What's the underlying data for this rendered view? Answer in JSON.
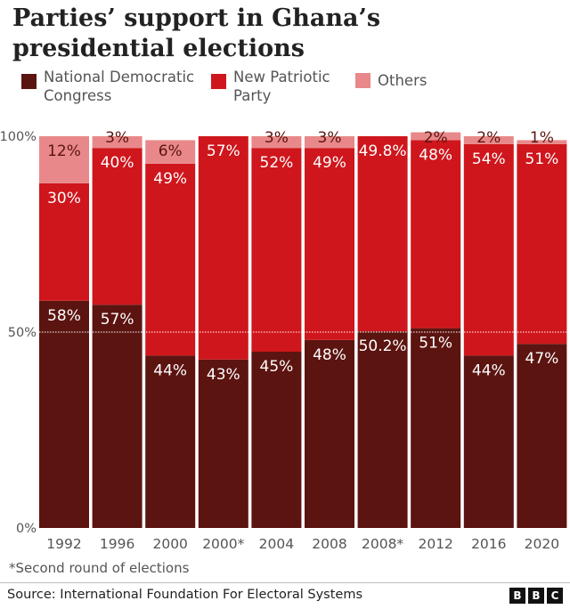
{
  "chart_data": {
    "type": "bar",
    "stacked": true,
    "title": "Parties’ support in Ghana’s presidential elections",
    "categories": [
      "1992",
      "1996",
      "2000",
      "2000*",
      "2004",
      "2008",
      "2008*",
      "2012",
      "2016",
      "2020"
    ],
    "series": [
      {
        "name": "National Democratic Congress",
        "color": "#5c1410",
        "values": [
          58,
          57,
          44,
          43,
          45,
          48,
          50.2,
          51,
          44,
          47
        ],
        "labels": [
          "58%",
          "57%",
          "44%",
          "43%",
          "45%",
          "48%",
          "50.2%",
          "51%",
          "44%",
          "47%"
        ]
      },
      {
        "name": "New Patriotic Party",
        "color": "#cf161c",
        "values": [
          30,
          40,
          49,
          57,
          52,
          49,
          49.8,
          48,
          54,
          51
        ],
        "labels": [
          "30%",
          "40%",
          "49%",
          "57%",
          "52%",
          "49%",
          "49.8%",
          "48%",
          "54%",
          "51%"
        ]
      },
      {
        "name": "Others",
        "color": "#e8888a",
        "values": [
          12,
          3,
          6,
          0,
          3,
          3,
          0,
          2,
          2,
          1
        ],
        "labels": [
          "12%",
          "3%",
          "6%",
          "",
          "3%",
          "3%",
          "",
          "2%",
          "2%",
          "1%"
        ]
      }
    ],
    "ylim": [
      0,
      100
    ],
    "yticks": [
      "0%",
      "50%",
      "100%"
    ],
    "legend": "top-left",
    "grid": "dotted line at 50%"
  },
  "legend": {
    "ndc": "National Democratic Congress",
    "ndc_l1": "National Democratic",
    "ndc_l2": "Congress",
    "npp_l1": "New Patriotic",
    "npp_l2": "Party",
    "others": "Others"
  },
  "note": "*Second round of elections",
  "source": "Source: International Foundation For Electoral Systems",
  "logo": "BBC"
}
